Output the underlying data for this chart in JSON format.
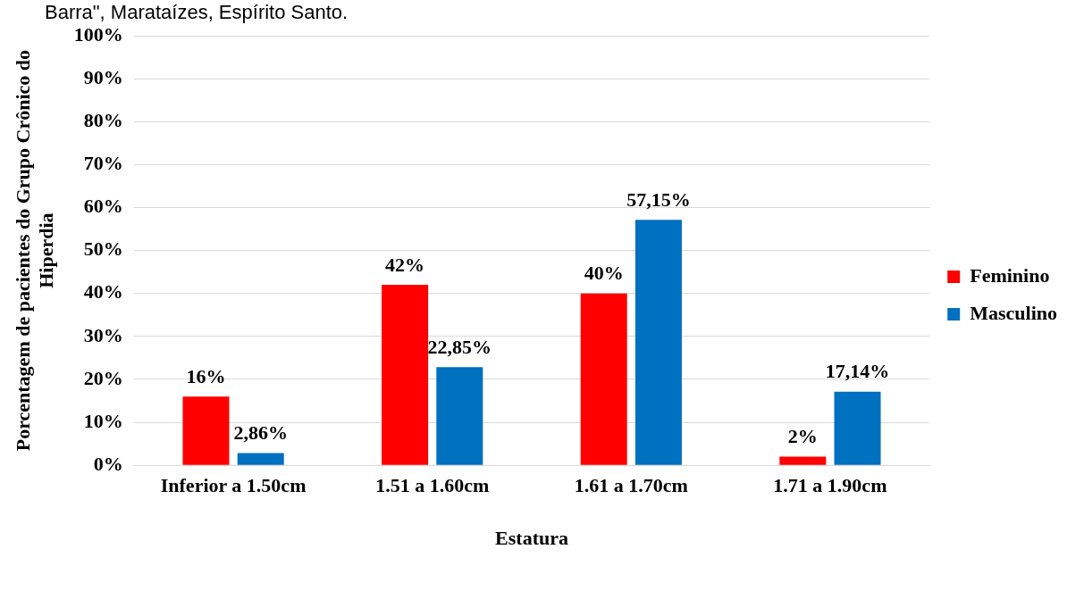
{
  "chart_data": {
    "type": "bar",
    "xlabel": "Estatura",
    "ylabel": "Porcentagem de pacientes do Grupo Crônico do Hiperdia",
    "annotations": [
      "Barra\", Marataízes, Espírito Santo."
    ],
    "categories": [
      "Inferior a 1.50cm",
      "1.51 a 1.60cm",
      "1.61 a 1.70cm",
      "1.71 a 1.90cm"
    ],
    "series": [
      {
        "name": "Feminino",
        "color": "#ff0000",
        "values": [
          16,
          42,
          40,
          2
        ],
        "value_labels": [
          "16%",
          "42%",
          "40%",
          "2%"
        ]
      },
      {
        "name": "Masculino",
        "color": "#0070c0",
        "values": [
          2.86,
          22.85,
          57.15,
          17.14
        ],
        "value_labels": [
          "2,86%",
          "22,85%",
          "57,15%",
          "17,14%"
        ]
      }
    ],
    "ylim": [
      0,
      100
    ],
    "yticks": [
      {
        "value": 0,
        "label": "0%"
      },
      {
        "value": 10,
        "label": "10%"
      },
      {
        "value": 20,
        "label": "20%"
      },
      {
        "value": 30,
        "label": "30%"
      },
      {
        "value": 40,
        "label": "40%"
      },
      {
        "value": 50,
        "label": "50%"
      },
      {
        "value": 60,
        "label": "60%"
      },
      {
        "value": 70,
        "label": "70%"
      },
      {
        "value": 80,
        "label": "80%"
      },
      {
        "value": 90,
        "label": "90%"
      },
      {
        "value": 100,
        "label": "100%"
      }
    ],
    "grid": "y",
    "legend": "right"
  }
}
